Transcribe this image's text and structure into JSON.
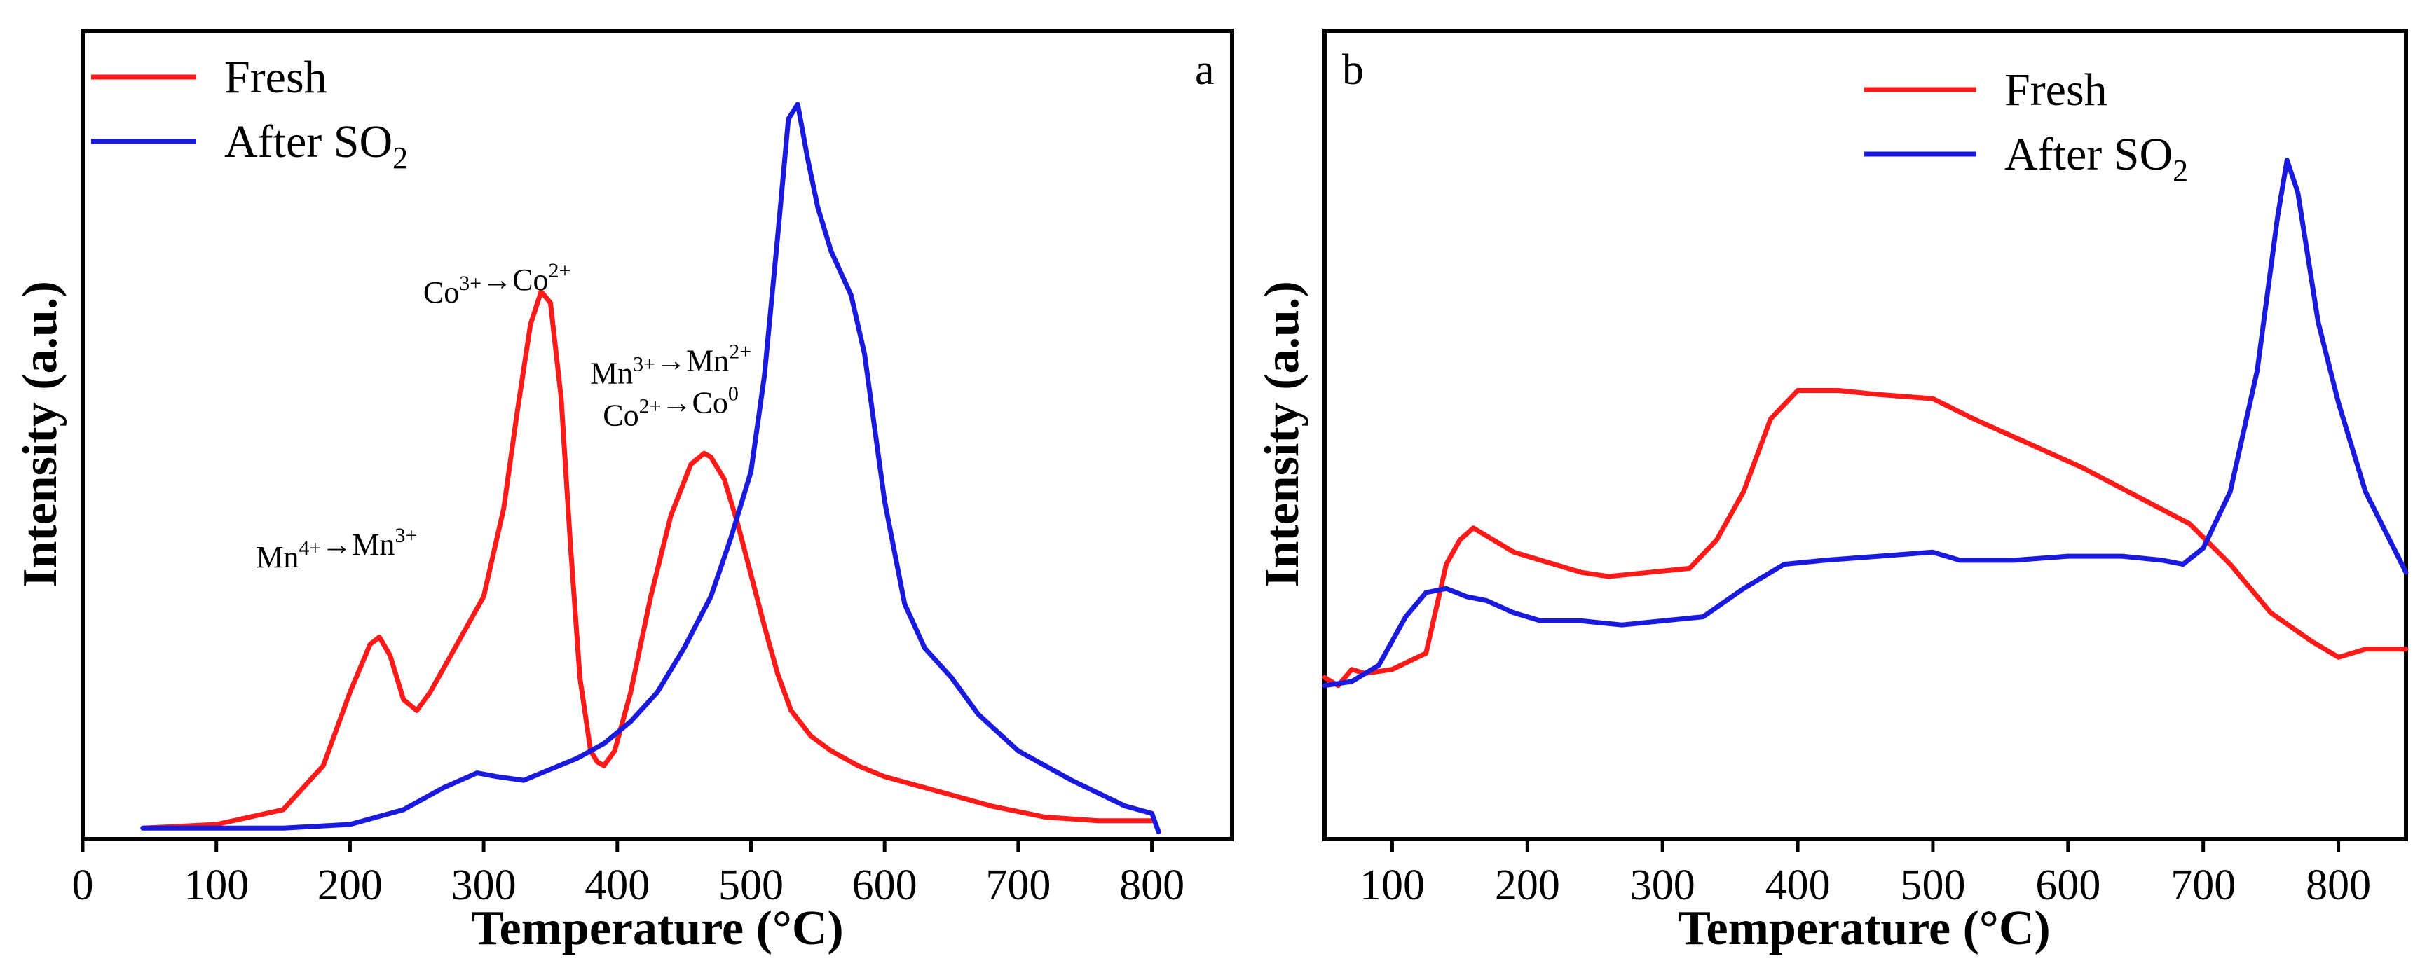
{
  "colors": {
    "fresh": "#ff1a1a",
    "after": "#1a1adf"
  },
  "chart_data": [
    {
      "type": "line",
      "panel": "a",
      "xlabel": "Temperature (°C)",
      "ylabel": "Intensity (a.u.)",
      "xlim": [
        0,
        860
      ],
      "ylim": [
        0,
        1.1
      ],
      "xticks": [
        0,
        100,
        200,
        300,
        400,
        500,
        600,
        700,
        800
      ],
      "yticks_shown": false,
      "legend": {
        "placement": "top-left",
        "entries": [
          {
            "name": "Fresh",
            "color": "#ff1a1a"
          },
          {
            "name": "After SO",
            "sub": "2",
            "color": "#1a1adf"
          }
        ]
      },
      "annotations": [
        {
          "lines": [
            [
              [
                "Mn",
                "4+"
              ],
              [
                "→Mn",
                "3+"
              ]
            ]
          ],
          "x": 190,
          "y": 0.37
        },
        {
          "lines": [
            [
              [
                "Co",
                "3+"
              ],
              [
                "→Co",
                "2+"
              ]
            ]
          ],
          "x": 310,
          "y": 0.73
        },
        {
          "lines": [
            [
              [
                "Mn",
                "3+"
              ],
              [
                "→Mn",
                "2+"
              ]
            ],
            [
              [
                "Co",
                "2+"
              ],
              [
                "→Co",
                "0"
              ]
            ]
          ],
          "x": 440,
          "y": 0.62
        }
      ],
      "series": [
        {
          "name": "Fresh",
          "color": "#ff1a1a",
          "x": [
            45,
            100,
            150,
            180,
            200,
            215,
            222,
            230,
            240,
            250,
            260,
            280,
            300,
            315,
            325,
            335,
            343,
            350,
            358,
            365,
            372,
            380,
            385,
            390,
            398,
            410,
            425,
            440,
            455,
            465,
            470,
            480,
            490,
            500,
            510,
            520,
            530,
            545,
            560,
            580,
            600,
            640,
            680,
            720,
            760,
            800
          ],
          "y": [
            0.015,
            0.02,
            0.04,
            0.1,
            0.2,
            0.265,
            0.275,
            0.25,
            0.19,
            0.175,
            0.2,
            0.265,
            0.33,
            0.45,
            0.58,
            0.7,
            0.745,
            0.73,
            0.6,
            0.4,
            0.22,
            0.12,
            0.105,
            0.1,
            0.12,
            0.2,
            0.33,
            0.44,
            0.51,
            0.525,
            0.52,
            0.49,
            0.43,
            0.36,
            0.29,
            0.225,
            0.175,
            0.14,
            0.12,
            0.1,
            0.085,
            0.065,
            0.045,
            0.03,
            0.025,
            0.025
          ]
        },
        {
          "name": "After SO2",
          "color": "#1a1adf",
          "x": [
            45,
            100,
            150,
            200,
            240,
            270,
            295,
            310,
            330,
            350,
            370,
            390,
            410,
            430,
            450,
            470,
            485,
            500,
            510,
            520,
            528,
            535,
            542,
            550,
            560,
            575,
            585,
            600,
            615,
            630,
            650,
            670,
            700,
            740,
            780,
            800,
            805
          ],
          "y": [
            0.015,
            0.015,
            0.015,
            0.02,
            0.04,
            0.07,
            0.09,
            0.085,
            0.08,
            0.095,
            0.11,
            0.13,
            0.16,
            0.2,
            0.26,
            0.33,
            0.41,
            0.5,
            0.63,
            0.82,
            0.98,
            1.0,
            0.93,
            0.86,
            0.8,
            0.74,
            0.66,
            0.46,
            0.32,
            0.26,
            0.22,
            0.17,
            0.12,
            0.08,
            0.045,
            0.035,
            0.01
          ]
        }
      ]
    },
    {
      "type": "line",
      "panel": "b",
      "xlabel": "Temperature (°C)",
      "ylabel": "Intensity (a.u.)",
      "xlim": [
        50,
        850
      ],
      "ylim": [
        0,
        1.0
      ],
      "xticks": [
        100,
        200,
        300,
        400,
        500,
        600,
        700,
        800
      ],
      "yticks_shown": false,
      "legend": {
        "placement": "top-center",
        "entries": [
          {
            "name": "Fresh",
            "color": "#ff1a1a"
          },
          {
            "name": "After SO",
            "sub": "2",
            "color": "#1a1adf"
          }
        ]
      },
      "series": [
        {
          "name": "Fresh",
          "color": "#ff1a1a",
          "x": [
            50,
            60,
            70,
            80,
            100,
            125,
            140,
            150,
            160,
            175,
            190,
            210,
            240,
            260,
            290,
            320,
            340,
            360,
            380,
            400,
            430,
            460,
            500,
            530,
            570,
            610,
            650,
            690,
            720,
            750,
            780,
            800,
            820,
            850
          ],
          "y": [
            0.2,
            0.19,
            0.21,
            0.205,
            0.21,
            0.23,
            0.34,
            0.37,
            0.385,
            0.37,
            0.355,
            0.345,
            0.33,
            0.325,
            0.33,
            0.335,
            0.37,
            0.43,
            0.52,
            0.555,
            0.555,
            0.55,
            0.545,
            0.52,
            0.49,
            0.46,
            0.425,
            0.39,
            0.34,
            0.28,
            0.245,
            0.225,
            0.235,
            0.235
          ]
        },
        {
          "name": "After SO2",
          "color": "#1a1adf",
          "x": [
            50,
            70,
            90,
            110,
            125,
            140,
            155,
            170,
            190,
            210,
            240,
            270,
            300,
            330,
            360,
            390,
            420,
            460,
            500,
            520,
            560,
            600,
            640,
            670,
            685,
            700,
            720,
            740,
            755,
            762,
            770,
            785,
            800,
            820,
            850
          ],
          "y": [
            0.19,
            0.195,
            0.215,
            0.275,
            0.305,
            0.31,
            0.3,
            0.295,
            0.28,
            0.27,
            0.27,
            0.265,
            0.27,
            0.275,
            0.31,
            0.34,
            0.345,
            0.35,
            0.355,
            0.345,
            0.345,
            0.35,
            0.35,
            0.345,
            0.34,
            0.36,
            0.43,
            0.58,
            0.77,
            0.84,
            0.8,
            0.64,
            0.54,
            0.43,
            0.33
          ]
        }
      ]
    }
  ]
}
